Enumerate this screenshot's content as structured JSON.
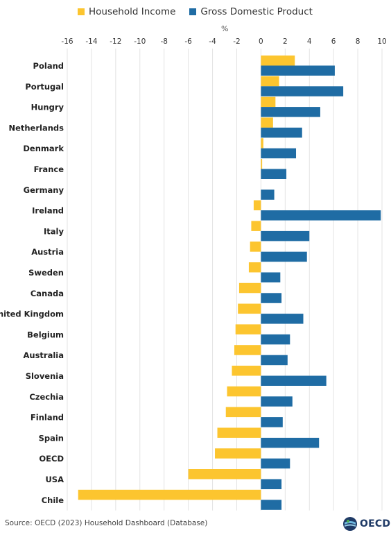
{
  "legend": [
    {
      "name": "Household Income",
      "color": "#fcc52f"
    },
    {
      "name": "Gross Domestic Product",
      "color": "#1f6ca4"
    }
  ],
  "unit_label": "%",
  "source": "Source: OECD (2023) Household Dashboard (Database)",
  "logo": {
    "text": "OECD"
  },
  "chart_data": {
    "type": "bar",
    "orientation": "horizontal",
    "categories": [
      "Poland",
      "Portugal",
      "Hungry",
      "Netherlands",
      "Denmark",
      "France",
      "Germany",
      "Ireland",
      "Italy",
      "Austria",
      "Sweden",
      "Canada",
      "United Kingdom",
      "Belgium",
      "Australia",
      "Slovenia",
      "Czechia",
      "Finland",
      "Spain",
      "OECD",
      "USA",
      "Chile"
    ],
    "series": [
      {
        "name": "Household Income",
        "color": "#fcc52f",
        "values": [
          2.8,
          1.5,
          1.2,
          1.0,
          0.2,
          0.1,
          0.0,
          -0.6,
          -0.8,
          -0.9,
          -1.0,
          -1.8,
          -1.9,
          -2.1,
          -2.2,
          -2.4,
          -2.8,
          -2.9,
          -3.6,
          -3.8,
          -6.0,
          -15.1
        ]
      },
      {
        "name": "Gross Domestic Product",
        "color": "#1f6ca4",
        "values": [
          6.1,
          6.8,
          4.9,
          3.4,
          2.9,
          2.1,
          1.1,
          9.9,
          4.0,
          3.8,
          1.6,
          1.7,
          3.5,
          2.4,
          2.2,
          5.4,
          2.6,
          1.8,
          4.8,
          2.4,
          1.7,
          1.7
        ]
      }
    ],
    "xlim": [
      -16,
      10
    ],
    "xticks": [
      -16,
      -14,
      -12,
      -10,
      -8,
      -6,
      -4,
      -2,
      0,
      2,
      4,
      6,
      8,
      10
    ],
    "xlabel": "%",
    "grid": true,
    "legend_position": "top-left"
  }
}
